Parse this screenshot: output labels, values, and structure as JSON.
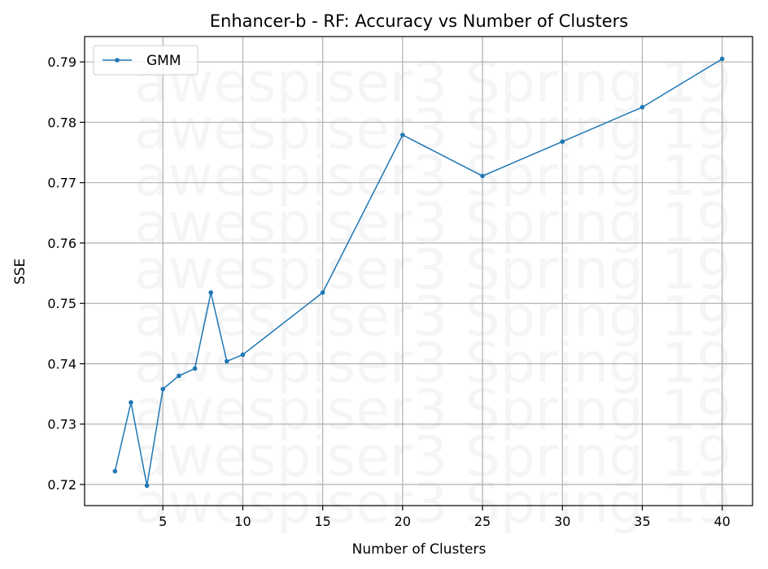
{
  "chart_data": {
    "type": "line",
    "title": "Enhancer-b - RF: Accuracy vs Number of Clusters",
    "xlabel": "Number of Clusters",
    "ylabel": "SSE",
    "xlim": [
      0.1,
      41.9
    ],
    "ylim": [
      0.7165,
      0.7942
    ],
    "xticks": [
      5,
      10,
      15,
      20,
      25,
      30,
      35,
      40
    ],
    "xtick_labels": [
      "5",
      "10",
      "15",
      "20",
      "25",
      "30",
      "35",
      "40"
    ],
    "yticks": [
      0.72,
      0.73,
      0.74,
      0.75,
      0.76,
      0.77,
      0.78,
      0.79
    ],
    "ytick_labels": [
      "0.72",
      "0.73",
      "0.74",
      "0.75",
      "0.76",
      "0.77",
      "0.78",
      "0.79"
    ],
    "grid": true,
    "legend_position": "top-left",
    "series": [
      {
        "name": "GMM",
        "color": "#1f77b4",
        "marker": "circle",
        "x": [
          2,
          3,
          4,
          5,
          6,
          7,
          8,
          9,
          10,
          15,
          20,
          25,
          30,
          35,
          40
        ],
        "values": [
          0.7222,
          0.7336,
          0.7198,
          0.7358,
          0.738,
          0.7392,
          0.7518,
          0.7404,
          0.7415,
          0.7518,
          0.7779,
          0.7711,
          0.7768,
          0.7825,
          0.7905
        ]
      }
    ]
  },
  "watermark": {
    "text": "awespiser3 Spring 19",
    "repeat": 10
  }
}
